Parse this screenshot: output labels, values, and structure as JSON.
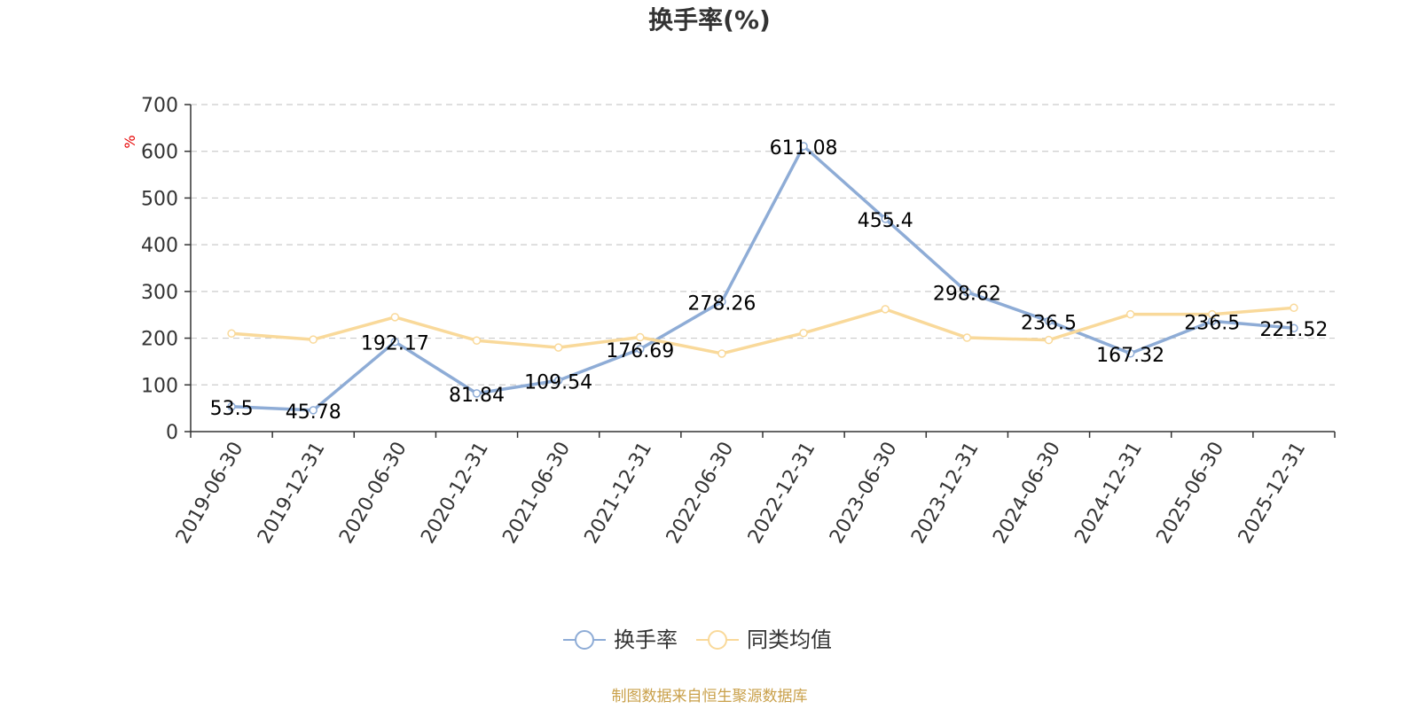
{
  "chart_data": {
    "type": "line",
    "title": "换手率(%)",
    "ylabel": "%",
    "ylim": [
      0,
      700
    ],
    "yticks": [
      0,
      100,
      200,
      300,
      400,
      500,
      600,
      700
    ],
    "grid": true,
    "legend_position": "bottom",
    "categories": [
      "2019-06-30",
      "2019-12-31",
      "2020-06-30",
      "2020-12-31",
      "2021-06-30",
      "2021-12-31",
      "2022-06-30",
      "2022-12-31",
      "2023-06-30",
      "2023-12-31",
      "2024-06-30",
      "2024-12-31",
      "2025-06-30",
      "2025-12-31"
    ],
    "series": [
      {
        "name": "换手率",
        "color": "#8eacd6",
        "values": [
          53.5,
          45.78,
          192.17,
          81.84,
          109.54,
          176.69,
          278.26,
          611.08,
          455.4,
          298.62,
          236.5,
          167.32,
          236.5,
          221.52
        ],
        "labels": [
          "53.5",
          "45.78",
          "192.17",
          "81.84",
          "109.54",
          "176.69",
          "278.26",
          "611.08",
          "455.4",
          "298.62",
          "236.5",
          "167.32",
          "236.5",
          "221.52"
        ]
      },
      {
        "name": "同类均值",
        "color": "#f9d99a",
        "values": [
          210,
          197,
          245,
          195,
          180,
          202,
          167,
          211,
          262,
          201,
          196,
          251,
          251,
          265
        ]
      }
    ],
    "source": "制图数据来自恒生聚源数据库"
  }
}
